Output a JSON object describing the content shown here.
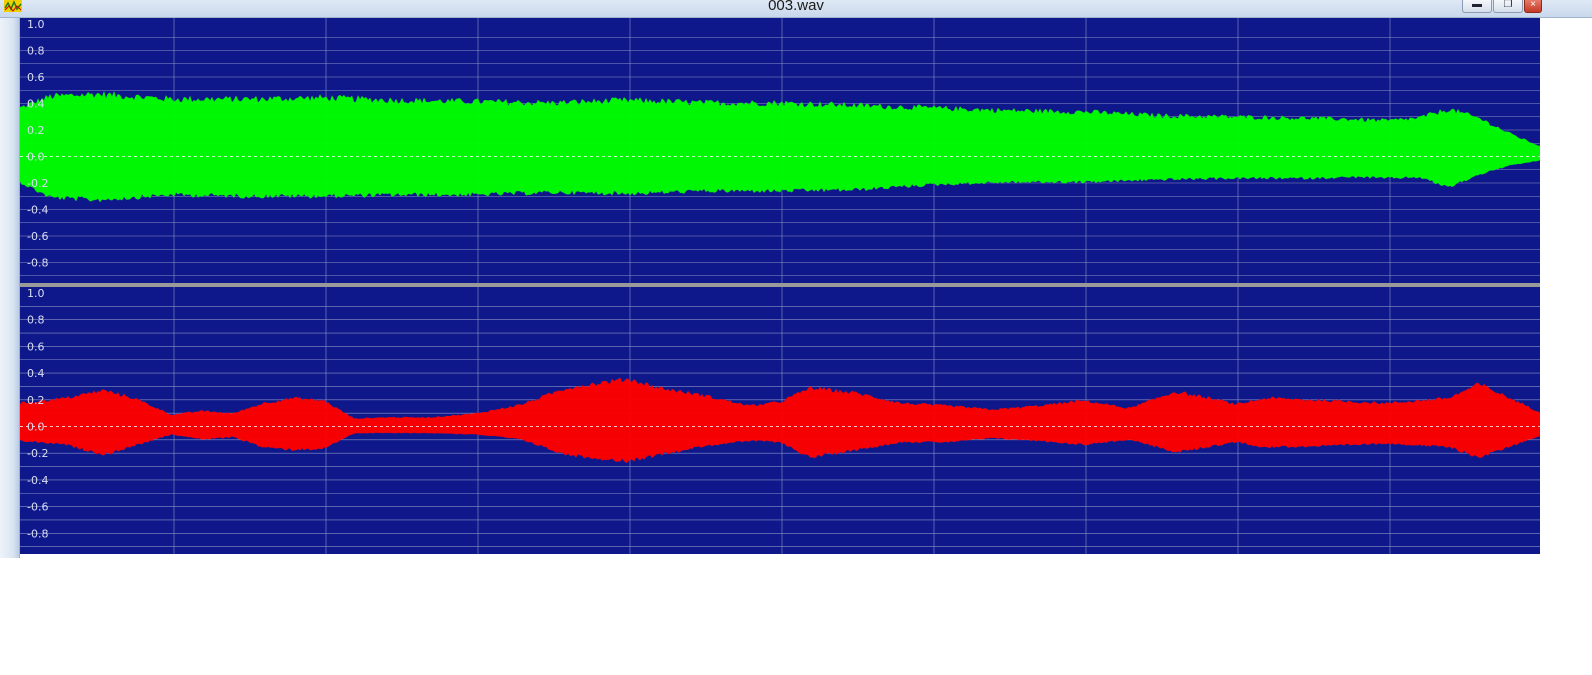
{
  "window": {
    "title": "003.wav",
    "buttons": {
      "minimize_icon": "minimize-icon",
      "restore_icon": "restore-icon",
      "close_icon": "close-icon"
    }
  },
  "colors": {
    "background": "#0f188a",
    "grid": "#8a92c4",
    "separator": "#9a9a9a",
    "channel_1": "#00ff00",
    "channel_2": "#ff0000",
    "zero_line": "#ffffff"
  },
  "chart_data": [
    {
      "type": "area",
      "name": "channel-1",
      "ylim": [
        -1.0,
        1.0
      ],
      "yticks": [
        "1.0",
        "0.8",
        "0.6",
        "0.4",
        "0.2",
        "0.0",
        "-0.2",
        "-0.4",
        "-0.6",
        "-0.8"
      ],
      "x": [
        0,
        0.02,
        0.05,
        0.1,
        0.15,
        0.2,
        0.25,
        0.3,
        0.35,
        0.4,
        0.45,
        0.5,
        0.55,
        0.6,
        0.65,
        0.7,
        0.75,
        0.8,
        0.85,
        0.88,
        0.9,
        0.92,
        0.94,
        0.96,
        0.98,
        1.0
      ],
      "upper": [
        0.38,
        0.47,
        0.49,
        0.45,
        0.45,
        0.46,
        0.44,
        0.43,
        0.42,
        0.44,
        0.42,
        0.42,
        0.4,
        0.38,
        0.36,
        0.35,
        0.32,
        0.31,
        0.3,
        0.29,
        0.28,
        0.3,
        0.37,
        0.3,
        0.18,
        0.08
      ],
      "lower": [
        -0.2,
        -0.32,
        -0.34,
        -0.3,
        -0.31,
        -0.31,
        -0.3,
        -0.3,
        -0.28,
        -0.29,
        -0.27,
        -0.27,
        -0.26,
        -0.22,
        -0.2,
        -0.2,
        -0.18,
        -0.17,
        -0.17,
        -0.16,
        -0.17,
        -0.16,
        -0.24,
        -0.14,
        -0.07,
        -0.03
      ]
    },
    {
      "type": "area",
      "name": "channel-2",
      "ylim": [
        -1.0,
        1.0
      ],
      "yticks": [
        "1.0",
        "0.8",
        "0.6",
        "0.4",
        "0.2",
        "0.0",
        "-0.2",
        "-0.4",
        "-0.6",
        "-0.8"
      ],
      "x": [
        0,
        0.03,
        0.055,
        0.075,
        0.1,
        0.12,
        0.14,
        0.16,
        0.18,
        0.2,
        0.22,
        0.24,
        0.27,
        0.3,
        0.33,
        0.36,
        0.4,
        0.42,
        0.45,
        0.48,
        0.5,
        0.52,
        0.55,
        0.58,
        0.61,
        0.64,
        0.67,
        0.7,
        0.73,
        0.76,
        0.79,
        0.8,
        0.82,
        0.86,
        0.9,
        0.94,
        0.96,
        1.0
      ],
      "upper": [
        0.18,
        0.22,
        0.28,
        0.22,
        0.09,
        0.12,
        0.1,
        0.18,
        0.22,
        0.2,
        0.06,
        0.07,
        0.07,
        0.1,
        0.17,
        0.3,
        0.37,
        0.3,
        0.24,
        0.16,
        0.19,
        0.3,
        0.26,
        0.18,
        0.16,
        0.13,
        0.16,
        0.2,
        0.14,
        0.27,
        0.2,
        0.17,
        0.22,
        0.2,
        0.18,
        0.22,
        0.33,
        0.11
      ],
      "lower": [
        -0.11,
        -0.14,
        -0.22,
        -0.15,
        -0.06,
        -0.1,
        -0.08,
        -0.16,
        -0.18,
        -0.17,
        -0.05,
        -0.05,
        -0.05,
        -0.06,
        -0.1,
        -0.22,
        -0.27,
        -0.22,
        -0.15,
        -0.11,
        -0.12,
        -0.24,
        -0.18,
        -0.12,
        -0.12,
        -0.09,
        -0.11,
        -0.14,
        -0.1,
        -0.2,
        -0.14,
        -0.12,
        -0.16,
        -0.15,
        -0.13,
        -0.16,
        -0.24,
        -0.07
      ]
    }
  ]
}
